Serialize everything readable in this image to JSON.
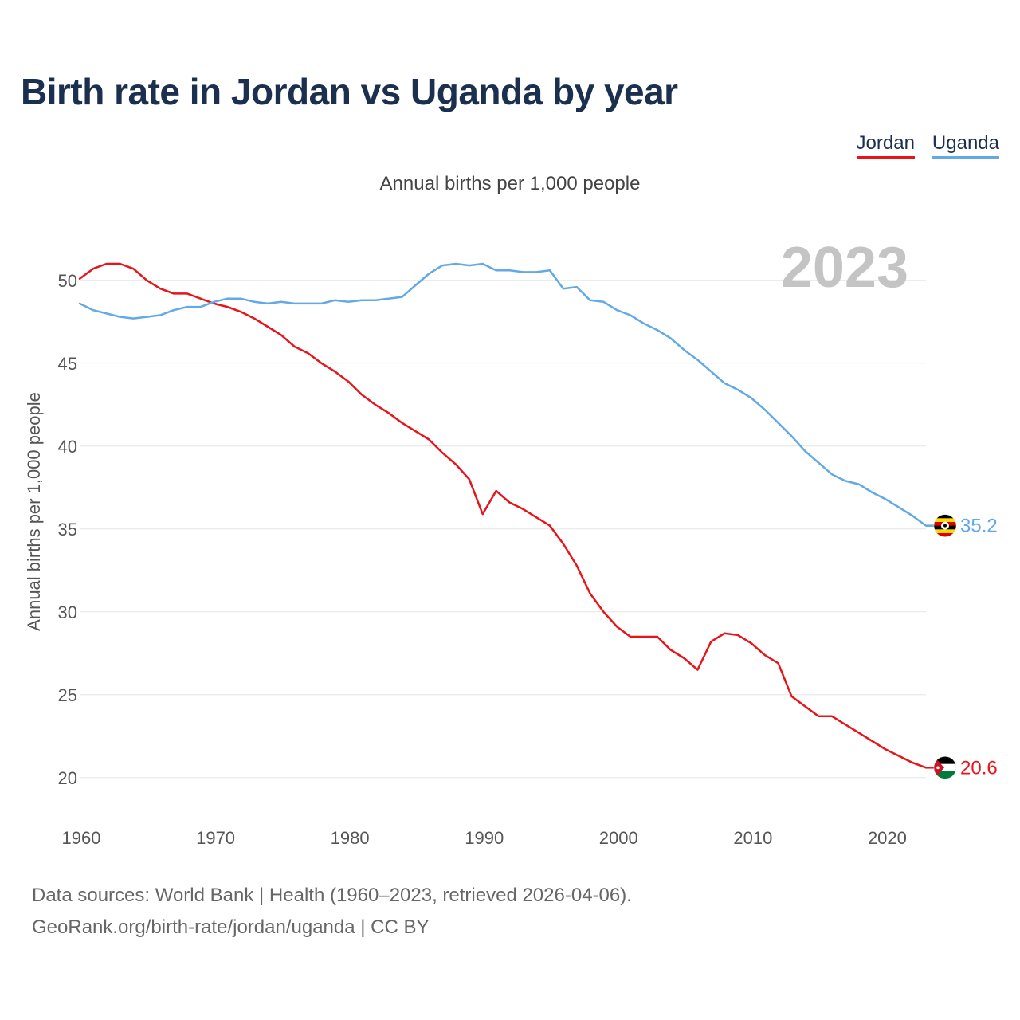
{
  "title": "Birth rate in Jordan vs Uganda by year",
  "subtitle": "Annual births per 1,000 people",
  "footer": {
    "line1": "Data sources: World Bank | Health (1960–2023, retrieved 2026-04-06).",
    "line2": "GeoRank.org/birth-rate/jordan/uganda | CC BY"
  },
  "legend": [
    {
      "label": "Jordan",
      "color": "#e8141a"
    },
    {
      "label": "Uganda",
      "color": "#63a9e6"
    }
  ],
  "chart_data": {
    "type": "line",
    "title": "Birth rate in Jordan vs Uganda by year",
    "ylabel": "Annual births per 1,000 people",
    "xlabel": "",
    "current_year": "2023",
    "ylim": [
      18.5,
      53.5
    ],
    "xlim": [
      1960,
      2023
    ],
    "yticks": [
      20,
      25,
      30,
      35,
      40,
      45,
      50
    ],
    "xticks": [
      1960,
      1970,
      1980,
      1990,
      2000,
      2010,
      2020
    ],
    "grid": true,
    "x": [
      1960,
      1961,
      1962,
      1963,
      1964,
      1965,
      1966,
      1967,
      1968,
      1969,
      1970,
      1971,
      1972,
      1973,
      1974,
      1975,
      1976,
      1977,
      1978,
      1979,
      1980,
      1981,
      1982,
      1983,
      1984,
      1985,
      1986,
      1987,
      1988,
      1989,
      1990,
      1991,
      1992,
      1993,
      1994,
      1995,
      1996,
      1997,
      1998,
      1999,
      2000,
      2001,
      2002,
      2003,
      2004,
      2005,
      2006,
      2007,
      2008,
      2009,
      2010,
      2011,
      2012,
      2013,
      2014,
      2015,
      2016,
      2017,
      2018,
      2019,
      2020,
      2021,
      2022,
      2023
    ],
    "series": [
      {
        "name": "Jordan",
        "color": "#e8141a",
        "end_label": "20.6",
        "values": [
          50.1,
          50.7,
          51.0,
          51.0,
          50.7,
          50.0,
          49.5,
          49.2,
          49.2,
          48.9,
          48.6,
          48.4,
          48.1,
          47.7,
          47.2,
          46.7,
          46.0,
          45.6,
          45.0,
          44.5,
          43.9,
          43.1,
          42.5,
          42.0,
          41.4,
          40.9,
          40.4,
          39.6,
          38.9,
          38.0,
          35.9,
          37.3,
          36.6,
          36.2,
          35.7,
          35.2,
          34.1,
          32.8,
          31.1,
          30.0,
          29.1,
          28.5,
          28.5,
          28.5,
          27.7,
          27.2,
          26.5,
          28.2,
          28.7,
          28.6,
          28.1,
          27.4,
          26.9,
          24.9,
          24.3,
          23.7,
          23.7,
          23.2,
          22.7,
          22.2,
          21.7,
          21.3,
          20.9,
          20.6
        ]
      },
      {
        "name": "Uganda",
        "color": "#63a9e6",
        "end_label": "35.2",
        "values": [
          48.6,
          48.2,
          48.0,
          47.8,
          47.7,
          47.8,
          47.9,
          48.2,
          48.4,
          48.4,
          48.7,
          48.9,
          48.9,
          48.7,
          48.6,
          48.7,
          48.6,
          48.6,
          48.6,
          48.8,
          48.7,
          48.8,
          48.8,
          48.9,
          49.0,
          49.7,
          50.4,
          50.9,
          51.0,
          50.9,
          51.0,
          50.6,
          50.6,
          50.5,
          50.5,
          50.6,
          49.5,
          49.6,
          48.8,
          48.7,
          48.2,
          47.9,
          47.4,
          47.0,
          46.5,
          45.8,
          45.2,
          44.5,
          43.8,
          43.4,
          42.9,
          42.2,
          41.4,
          40.6,
          39.7,
          39.0,
          38.3,
          37.9,
          37.7,
          37.2,
          36.8,
          36.3,
          35.8,
          35.2
        ]
      }
    ]
  }
}
